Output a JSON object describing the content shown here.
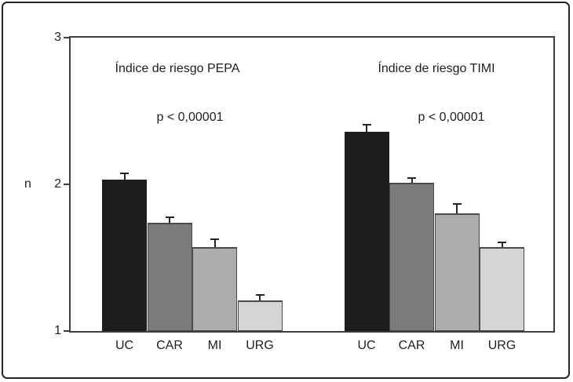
{
  "chart_data": {
    "type": "bar",
    "ylabel": "n",
    "ylim": [
      1,
      3
    ],
    "yticks": [
      3,
      2,
      1
    ],
    "y_tick_labels": [
      "3",
      "2",
      "1"
    ],
    "categories": [
      "UC",
      "CAR",
      "MI",
      "URG"
    ],
    "bar_colors": [
      "#1d1d1d",
      "#7b7b7b",
      "#acacac",
      "#d5d5d5"
    ],
    "error_color": "#262626",
    "grid": "off",
    "legend": "none",
    "groups": [
      {
        "title": "Índice de riesgo PEPA",
        "p_label": "p < 0,00001",
        "values": [
          2.03,
          1.74,
          1.57,
          1.21
        ],
        "errors": [
          0.05,
          0.04,
          0.06,
          0.04
        ]
      },
      {
        "title": "Índice de riesgo TIMI",
        "p_label": "p < 0,00001",
        "values": [
          2.36,
          2.01,
          1.8,
          1.57
        ],
        "errors": [
          0.05,
          0.04,
          0.07,
          0.04
        ]
      }
    ]
  }
}
